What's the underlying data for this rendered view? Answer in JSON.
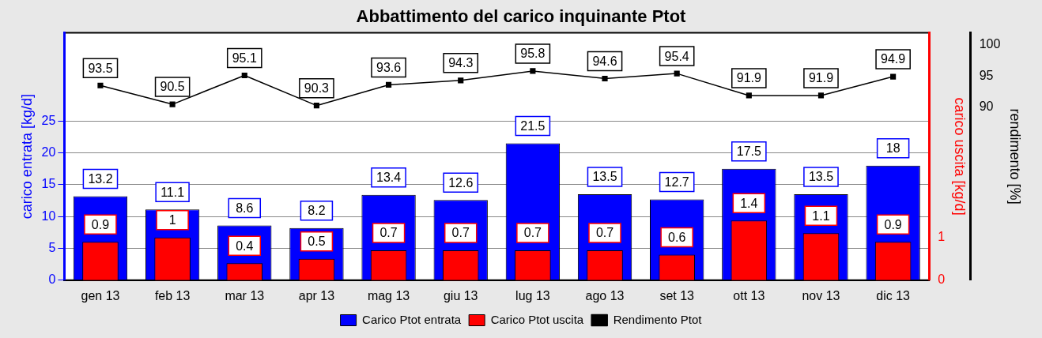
{
  "chart_data": {
    "type": "bar",
    "title": "Abbattimento del carico inquinante Ptot",
    "ylabel": "carico entrata [kg/d]",
    "y2label": "carico uscita [kg/d]",
    "y3label": "rendimento [%]",
    "categories": [
      "gen 13",
      "feb 13",
      "mar 13",
      "apr 13",
      "mag 13",
      "giu 13",
      "lug 13",
      "ago 13",
      "set 13",
      "ott 13",
      "nov 13",
      "dic 13"
    ],
    "series": [
      {
        "name": "Carico Ptot entrata",
        "color": "#0000ff",
        "values": [
          13.2,
          11.1,
          8.6,
          8.2,
          13.4,
          12.6,
          21.5,
          13.5,
          12.7,
          17.5,
          13.5,
          18
        ]
      },
      {
        "name": "Carico Ptot uscita",
        "axis": "y2",
        "color": "#ff0000",
        "values": [
          0.9,
          1,
          0.4,
          0.5,
          0.7,
          0.7,
          0.7,
          0.7,
          0.6,
          1.4,
          1.1,
          0.9
        ]
      },
      {
        "name": "Rendimento Ptot",
        "type": "line",
        "axis": "y3",
        "color": "#000000",
        "values": [
          93.5,
          90.5,
          95.1,
          90.3,
          93.6,
          94.3,
          95.8,
          94.6,
          95.4,
          91.9,
          91.9,
          94.9
        ]
      }
    ],
    "ylim": [
      0,
      38.9
    ],
    "yticks": [
      0,
      5,
      10,
      15,
      20,
      25
    ],
    "y2lim": [
      0,
      5.8
    ],
    "y2ticks": [
      0,
      1
    ],
    "y3lim": [
      62.5,
      101.9
    ],
    "y3ticks": [
      90,
      95,
      100
    ],
    "data_labels": true,
    "grid": "y",
    "legend": "bottom",
    "marker": "square",
    "line_style": "solid"
  }
}
